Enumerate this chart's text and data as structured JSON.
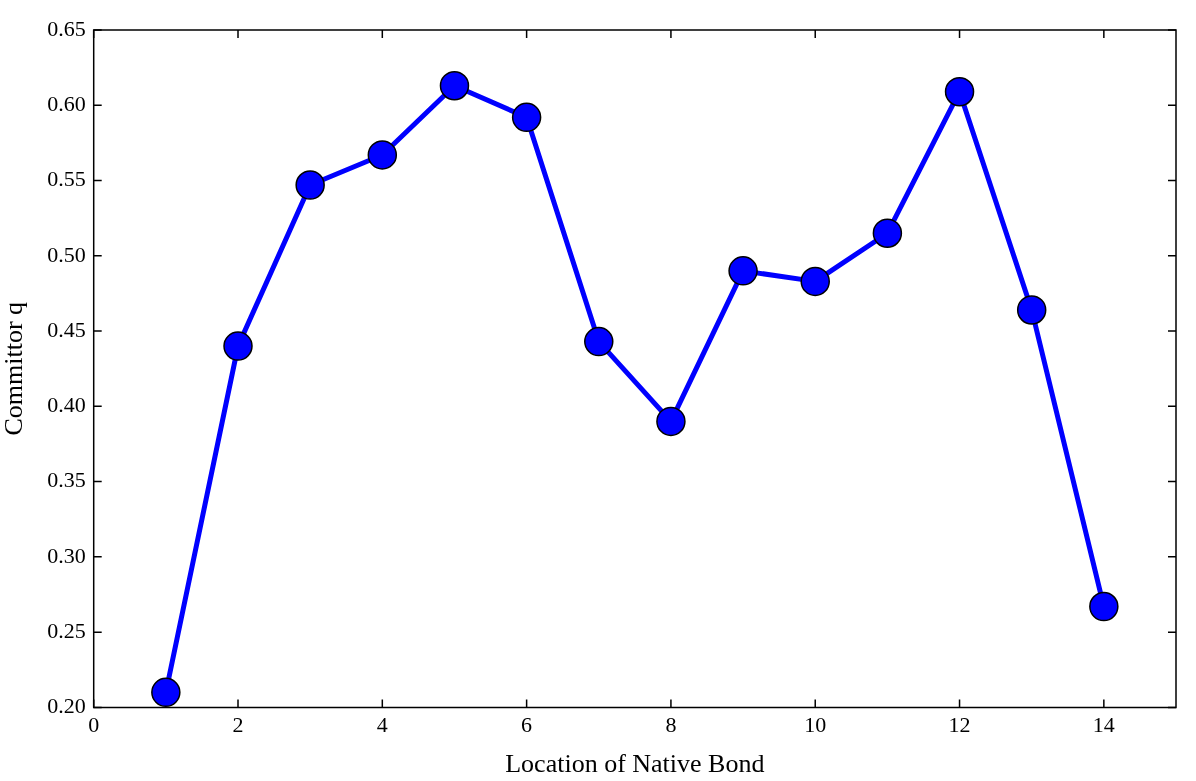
{
  "chart_data": {
    "type": "line",
    "xlabel": "Location of Native Bond",
    "ylabel": "Committor q",
    "x": [
      1,
      2,
      3,
      4,
      5,
      6,
      7,
      8,
      9,
      10,
      11,
      12,
      13,
      14
    ],
    "series": [
      {
        "color": "#0000ff",
        "values": [
          0.21,
          0.44,
          0.547,
          0.567,
          0.613,
          0.592,
          0.443,
          0.39,
          0.49,
          0.483,
          0.515,
          0.609,
          0.464,
          0.267
        ]
      }
    ],
    "xlim": [
      0,
      15
    ],
    "xticks": [
      0,
      2,
      4,
      6,
      8,
      10,
      12,
      14
    ],
    "ylim": [
      0.2,
      0.65
    ],
    "yticks": [
      {
        "value": 0.2,
        "label": "0.20"
      },
      0.25,
      {
        "value": 0.3,
        "label": "0.30"
      },
      0.35,
      {
        "value": 0.4,
        "label": "0.40"
      },
      0.45,
      {
        "value": 0.5,
        "label": "0.50"
      },
      0.55,
      {
        "value": 0.6,
        "label": "0.60"
      },
      0.65
    ],
    "grid": false,
    "legend": false,
    "marker": "circle",
    "line_style": "solid"
  }
}
